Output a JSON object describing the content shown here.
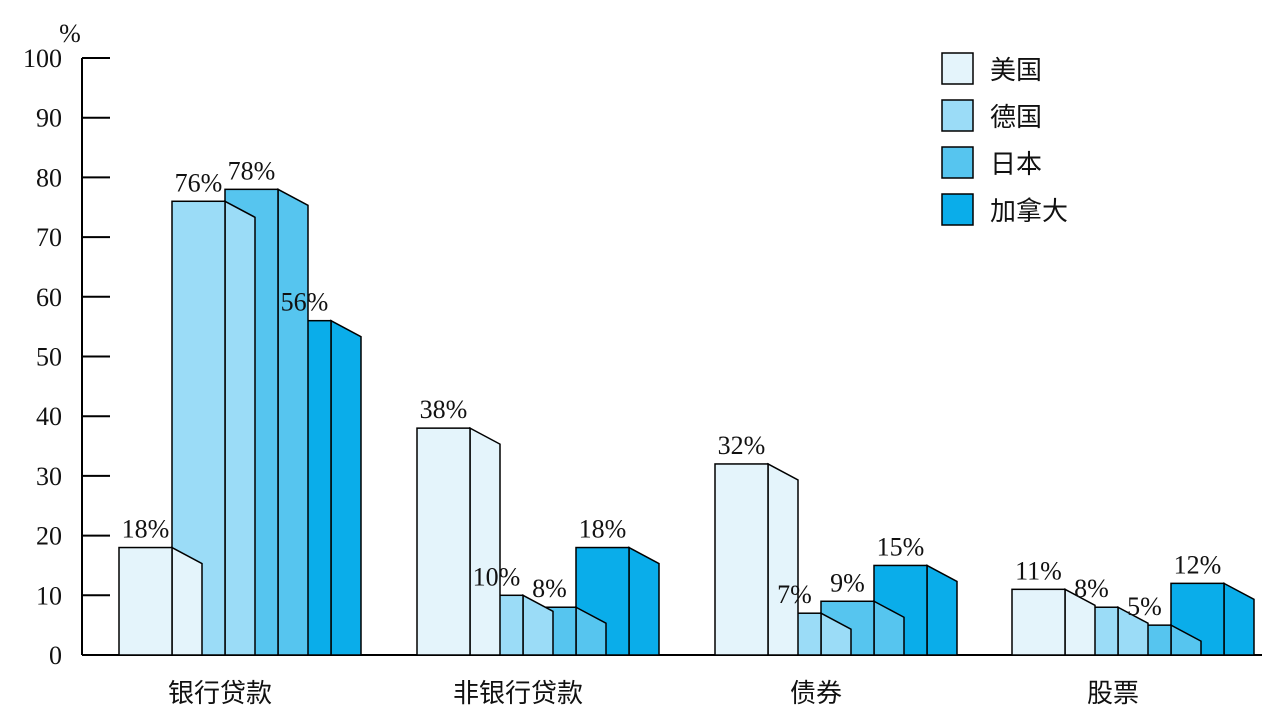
{
  "chart_data": {
    "type": "bar",
    "title": "",
    "xlabel": "",
    "ylabel": "%",
    "ylim": [
      0,
      100
    ],
    "yticks": [
      0,
      10,
      20,
      30,
      40,
      50,
      60,
      70,
      80,
      90,
      100
    ],
    "categories": [
      "银行贷款",
      "非银行贷款",
      "债券",
      "股票"
    ],
    "series": [
      {
        "name": "美国",
        "values": [
          18,
          38,
          32,
          11
        ],
        "labels": [
          "18%",
          "38%",
          "32%",
          "11%"
        ],
        "color": "#e4f4fb"
      },
      {
        "name": "德国",
        "values": [
          76,
          10,
          7,
          8
        ],
        "labels": [
          "76%",
          "10%",
          "7%",
          "8%"
        ],
        "color": "#9bdcf7"
      },
      {
        "name": "日本",
        "values": [
          78,
          8,
          9,
          5
        ],
        "labels": [
          "78%",
          "8%",
          "9%",
          "5%"
        ],
        "color": "#56c5ef"
      },
      {
        "name": "加拿大",
        "values": [
          56,
          18,
          15,
          12
        ],
        "labels": [
          "56%",
          "18%",
          "15%",
          "12%"
        ],
        "color": "#0aadea"
      }
    ],
    "grid": false,
    "legend": "top-right",
    "style": "3d-bars"
  }
}
